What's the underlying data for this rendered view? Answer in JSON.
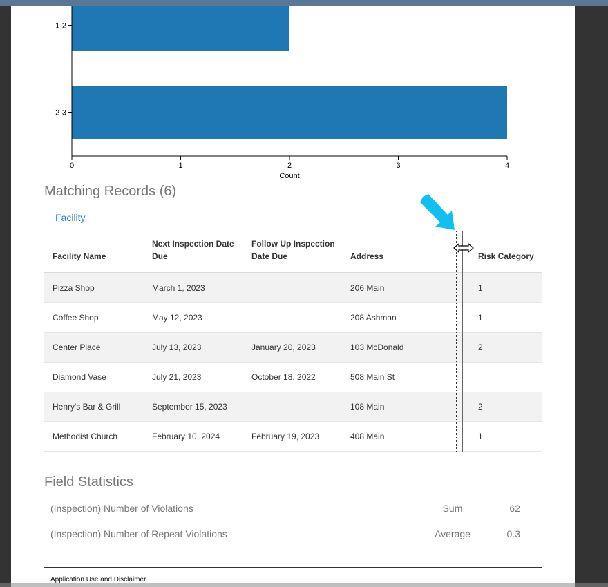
{
  "chart_data": {
    "type": "bar",
    "orientation": "horizontal",
    "categories": [
      "1-2",
      "2-3"
    ],
    "values": [
      2,
      4
    ],
    "xlabel": "Count",
    "ylabel": "",
    "xlim": [
      0,
      4
    ],
    "x_ticks": [
      "0",
      "1",
      "2",
      "3",
      "4"
    ],
    "bar_color": "#1f77b4"
  },
  "records": {
    "title": "Matching Records (6)",
    "tab_label": "Facility",
    "columns": [
      "Facility Name",
      "Next Inspection Date Due",
      "Follow Up Inspection Date Due",
      "Address",
      "",
      "Risk Category"
    ],
    "rows": [
      [
        "Pizza Shop",
        "March 1, 2023",
        "",
        "206 Main",
        "",
        "1"
      ],
      [
        "Coffee Shop",
        "May 12, 2023",
        "",
        "208 Ashman",
        "",
        "1"
      ],
      [
        "Center Place",
        "July 13, 2023",
        "January 20, 2023",
        "103 McDonald",
        "",
        "2"
      ],
      [
        "Diamond Vase",
        "July 21, 2023",
        "October 18, 2022",
        "508 Main St",
        "",
        ""
      ],
      [
        "Henry's Bar & Grill",
        "September 15, 2023",
        "",
        "108 Main",
        "",
        "2"
      ],
      [
        "Methodist Church",
        "February 10, 2024",
        "February 19, 2023",
        "408 Main",
        "",
        "1"
      ]
    ]
  },
  "field_statistics": {
    "title": "Field Statistics",
    "items": [
      {
        "field": "(Inspection) Number of Violations",
        "function": "Sum",
        "value": "62"
      },
      {
        "field": "(Inspection) Number of Repeat Violations",
        "function": "Average",
        "value": "0.3"
      }
    ]
  },
  "footer": {
    "link_label": "Application Use and Disclaimer"
  },
  "icons": {
    "cursor": "horizontal-resize-cursor-icon",
    "pointer": "cyan-arrow-icon"
  },
  "colors": {
    "accent": "#2b80c5",
    "bar": "#1f77b4",
    "annotation_arrow": "#10c0f0"
  }
}
